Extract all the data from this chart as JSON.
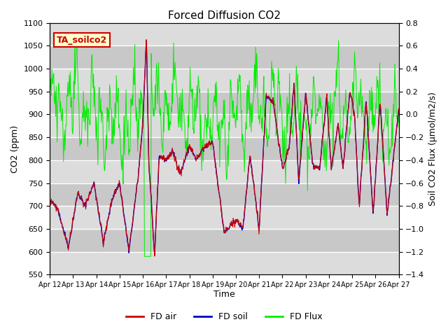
{
  "title": "Forced Diffusion CO2",
  "xlabel": "Time",
  "ylabel_left": "CO2 (ppm)",
  "ylabel_right": "Soil CO2 Flux (μmol/m2/s)",
  "ylim_left": [
    550,
    1100
  ],
  "ylim_right": [
    -1.4,
    0.8
  ],
  "yticks_left": [
    550,
    600,
    650,
    700,
    750,
    800,
    850,
    900,
    950,
    1000,
    1050,
    1100
  ],
  "yticks_right": [
    -1.4,
    -1.2,
    -1.0,
    -0.8,
    -0.6,
    -0.4,
    -0.2,
    0.0,
    0.2,
    0.4,
    0.6,
    0.8
  ],
  "xtick_labels": [
    "Apr 12",
    "Apr 13",
    "Apr 14",
    "Apr 15",
    "Apr 16",
    "Apr 17",
    "Apr 18",
    "Apr 19",
    "Apr 20",
    "Apr 21",
    "Apr 22",
    "Apr 23",
    "Apr 24",
    "Apr 25",
    "Apr 26",
    "Apr 27"
  ],
  "annotation_text": "TA_soilco2",
  "annotation_bg": "#FFFFCC",
  "annotation_edge": "#CC0000",
  "color_air": "#CC0000",
  "color_soil": "#0000CC",
  "color_flux": "#00EE00",
  "bg_color": "#FFFFFF",
  "plot_bg_color": "#DCDCDC",
  "band_color": "#C8C8C8",
  "grid_color": "#FFFFFF",
  "legend_labels": [
    "FD air",
    "FD soil",
    "FD Flux"
  ],
  "seed": 42,
  "n_points": 720
}
